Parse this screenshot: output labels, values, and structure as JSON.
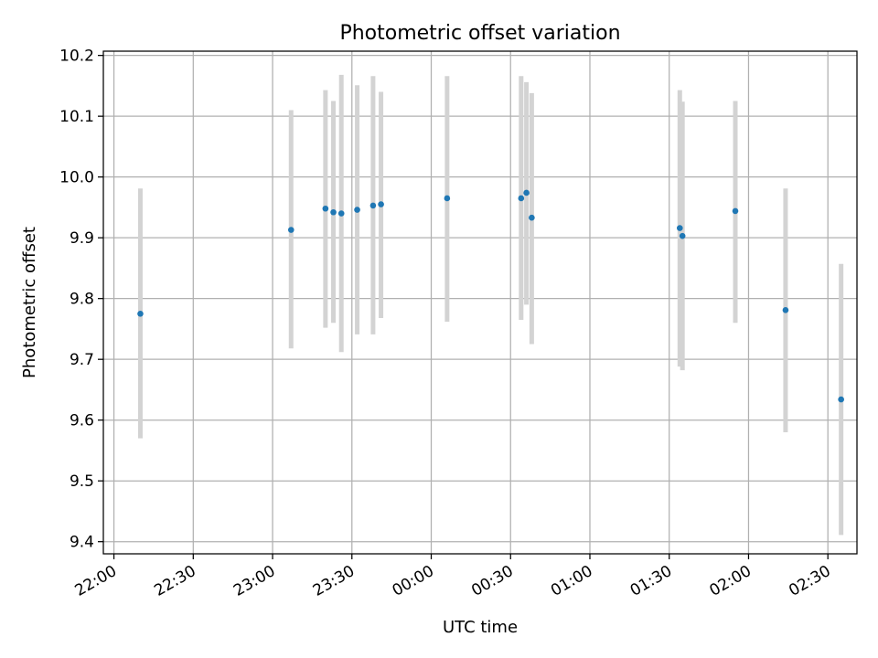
{
  "chart_data": {
    "type": "scatter",
    "title": "Photometric offset variation",
    "xlabel": "UTC time",
    "ylabel": "Photometric offset",
    "xlim": [
      "21:56",
      "02:41"
    ],
    "ylim": [
      9.38,
      10.207
    ],
    "grid": true,
    "x_ticks": [
      "22:00",
      "22:30",
      "23:00",
      "23:30",
      "00:00",
      "00:30",
      "01:00",
      "01:30",
      "02:00",
      "02:30"
    ],
    "y_ticks": [
      "9.4",
      "9.5",
      "9.6",
      "9.7",
      "9.8",
      "9.9",
      "10.0",
      "10.1",
      "10.2"
    ],
    "marker_color": "#1f77b4",
    "errorbar_color": "#d3d3d3",
    "points": [
      {
        "t": "22:10",
        "y": 9.775,
        "ylow": 9.57,
        "yhigh": 9.981
      },
      {
        "t": "23:07",
        "y": 9.913,
        "ylow": 9.718,
        "yhigh": 10.11
      },
      {
        "t": "23:20",
        "y": 9.948,
        "ylow": 9.752,
        "yhigh": 10.143
      },
      {
        "t": "23:23",
        "y": 9.942,
        "ylow": 9.76,
        "yhigh": 10.125
      },
      {
        "t": "23:26",
        "y": 9.94,
        "ylow": 9.712,
        "yhigh": 10.168
      },
      {
        "t": "23:32",
        "y": 9.946,
        "ylow": 9.741,
        "yhigh": 10.151
      },
      {
        "t": "23:38",
        "y": 9.953,
        "ylow": 9.741,
        "yhigh": 10.166
      },
      {
        "t": "23:41",
        "y": 9.955,
        "ylow": 9.768,
        "yhigh": 10.14
      },
      {
        "t": "00:06",
        "y": 9.965,
        "ylow": 9.762,
        "yhigh": 10.166
      },
      {
        "t": "00:34",
        "y": 9.965,
        "ylow": 9.765,
        "yhigh": 10.166
      },
      {
        "t": "00:36",
        "y": 9.974,
        "ylow": 9.79,
        "yhigh": 10.156
      },
      {
        "t": "00:38",
        "y": 9.933,
        "ylow": 9.725,
        "yhigh": 10.138
      },
      {
        "t": "01:34",
        "y": 9.916,
        "ylow": 9.688,
        "yhigh": 10.143
      },
      {
        "t": "01:35",
        "y": 9.903,
        "ylow": 9.682,
        "yhigh": 10.124
      },
      {
        "t": "01:55",
        "y": 9.944,
        "ylow": 9.76,
        "yhigh": 10.125
      },
      {
        "t": "02:14",
        "y": 9.781,
        "ylow": 9.58,
        "yhigh": 9.981
      },
      {
        "t": "02:35",
        "y": 9.634,
        "ylow": 9.411,
        "yhigh": 9.857
      }
    ]
  }
}
